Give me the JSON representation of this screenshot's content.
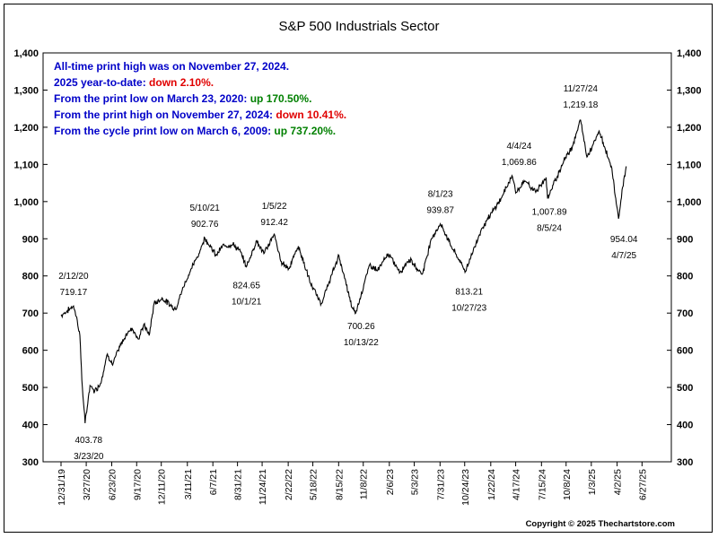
{
  "chart_data": {
    "type": "line",
    "title": "S&P 500 Industrials Sector",
    "xlabel": "",
    "ylabel": "",
    "ylim": [
      300,
      1400
    ],
    "y_ticks": [
      "300",
      "400",
      "500",
      "600",
      "700",
      "800",
      "900",
      "1,000",
      "1,100",
      "1,200",
      "1,300",
      "1,400"
    ],
    "grid": false,
    "line_color": "#000000",
    "x_date_range": [
      "2019-12-31",
      "2025-07-30"
    ],
    "x_ticks": [
      {
        "label": "12/31/19",
        "date": "2019-12-31"
      },
      {
        "label": "3/27/20",
        "date": "2020-03-27"
      },
      {
        "label": "6/23/20",
        "date": "2020-06-23"
      },
      {
        "label": "9/17/20",
        "date": "2020-09-17"
      },
      {
        "label": "12/11/20",
        "date": "2020-12-11"
      },
      {
        "label": "3/11/21",
        "date": "2021-03-11"
      },
      {
        "label": "6/7/21",
        "date": "2021-06-07"
      },
      {
        "label": "8/31/21",
        "date": "2021-08-31"
      },
      {
        "label": "11/24/21",
        "date": "2021-11-24"
      },
      {
        "label": "2/22/22",
        "date": "2022-02-22"
      },
      {
        "label": "5/18/22",
        "date": "2022-05-18"
      },
      {
        "label": "8/15/22",
        "date": "2022-08-15"
      },
      {
        "label": "11/8/22",
        "date": "2022-11-08"
      },
      {
        "label": "2/6/23",
        "date": "2023-02-06"
      },
      {
        "label": "5/3/23",
        "date": "2023-05-03"
      },
      {
        "label": "7/31/23",
        "date": "2023-07-31"
      },
      {
        "label": "10/24/23",
        "date": "2023-10-24"
      },
      {
        "label": "1/22/24",
        "date": "2024-01-22"
      },
      {
        "label": "4/17/24",
        "date": "2024-04-17"
      },
      {
        "label": "7/15/24",
        "date": "2024-07-15"
      },
      {
        "label": "10/8/24",
        "date": "2024-10-08"
      },
      {
        "label": "1/3/25",
        "date": "2025-01-03"
      },
      {
        "label": "4/2/25",
        "date": "2025-04-02"
      },
      {
        "label": "6/27/25",
        "date": "2025-06-27"
      }
    ],
    "series": [
      {
        "values": [
          {
            "x": "2019-12-31",
            "y": 693
          },
          {
            "x": "2020-01-20",
            "y": 705
          },
          {
            "x": "2020-02-12",
            "y": 719.17
          },
          {
            "x": "2020-02-25",
            "y": 680
          },
          {
            "x": "2020-03-05",
            "y": 640
          },
          {
            "x": "2020-03-12",
            "y": 520
          },
          {
            "x": "2020-03-23",
            "y": 403.78
          },
          {
            "x": "2020-04-09",
            "y": 505
          },
          {
            "x": "2020-04-25",
            "y": 490
          },
          {
            "x": "2020-05-15",
            "y": 510
          },
          {
            "x": "2020-06-08",
            "y": 590
          },
          {
            "x": "2020-06-26",
            "y": 560
          },
          {
            "x": "2020-07-15",
            "y": 600
          },
          {
            "x": "2020-08-10",
            "y": 640
          },
          {
            "x": "2020-09-01",
            "y": 660
          },
          {
            "x": "2020-09-24",
            "y": 630
          },
          {
            "x": "2020-10-12",
            "y": 670
          },
          {
            "x": "2020-10-30",
            "y": 640
          },
          {
            "x": "2020-11-16",
            "y": 725
          },
          {
            "x": "2020-12-15",
            "y": 740
          },
          {
            "x": "2021-01-29",
            "y": 710
          },
          {
            "x": "2021-02-25",
            "y": 770
          },
          {
            "x": "2021-03-25",
            "y": 820
          },
          {
            "x": "2021-04-20",
            "y": 860
          },
          {
            "x": "2021-05-10",
            "y": 902.76
          },
          {
            "x": "2021-06-18",
            "y": 855
          },
          {
            "x": "2021-07-10",
            "y": 880
          },
          {
            "x": "2021-08-15",
            "y": 885
          },
          {
            "x": "2021-09-10",
            "y": 865
          },
          {
            "x": "2021-10-01",
            "y": 824.65
          },
          {
            "x": "2021-11-05",
            "y": 895
          },
          {
            "x": "2021-11-30",
            "y": 860
          },
          {
            "x": "2022-01-05",
            "y": 912.42
          },
          {
            "x": "2022-01-27",
            "y": 840
          },
          {
            "x": "2022-02-24",
            "y": 820
          },
          {
            "x": "2022-03-29",
            "y": 880
          },
          {
            "x": "2022-05-10",
            "y": 780
          },
          {
            "x": "2022-06-16",
            "y": 725
          },
          {
            "x": "2022-08-16",
            "y": 855
          },
          {
            "x": "2022-09-30",
            "y": 715
          },
          {
            "x": "2022-10-13",
            "y": 700.26
          },
          {
            "x": "2022-11-30",
            "y": 830
          },
          {
            "x": "2022-12-28",
            "y": 815
          },
          {
            "x": "2023-02-02",
            "y": 860
          },
          {
            "x": "2023-03-15",
            "y": 810
          },
          {
            "x": "2023-04-15",
            "y": 845
          },
          {
            "x": "2023-05-31",
            "y": 805
          },
          {
            "x": "2023-07-01",
            "y": 900
          },
          {
            "x": "2023-08-01",
            "y": 939.87
          },
          {
            "x": "2023-09-15",
            "y": 870
          },
          {
            "x": "2023-10-27",
            "y": 813.21
          },
          {
            "x": "2023-12-20",
            "y": 925
          },
          {
            "x": "2024-02-28",
            "y": 1010
          },
          {
            "x": "2024-04-04",
            "y": 1069.86
          },
          {
            "x": "2024-04-19",
            "y": 1025
          },
          {
            "x": "2024-05-20",
            "y": 1055
          },
          {
            "x": "2024-06-25",
            "y": 1025
          },
          {
            "x": "2024-07-31",
            "y": 1065
          },
          {
            "x": "2024-08-05",
            "y": 1007.89
          },
          {
            "x": "2024-09-30",
            "y": 1110
          },
          {
            "x": "2024-10-30",
            "y": 1150
          },
          {
            "x": "2024-11-27",
            "y": 1219.18
          },
          {
            "x": "2024-12-19",
            "y": 1120
          },
          {
            "x": "2025-01-30",
            "y": 1190
          },
          {
            "x": "2025-03-13",
            "y": 1095
          },
          {
            "x": "2025-04-07",
            "y": 954.04
          },
          {
            "x": "2025-04-25",
            "y": 1060
          },
          {
            "x": "2025-05-05",
            "y": 1093
          }
        ]
      }
    ],
    "annotations": [
      {
        "label": "2/12/20",
        "value": "719.17"
      },
      {
        "label": "3/23/20",
        "value": "403.78"
      },
      {
        "label": "5/10/21",
        "value": "902.76"
      },
      {
        "label": "10/1/21",
        "value": "824.65"
      },
      {
        "label": "1/5/22",
        "value": "912.42"
      },
      {
        "label": "10/13/22",
        "value": "700.26"
      },
      {
        "label": "8/1/23",
        "value": "939.87"
      },
      {
        "label": "10/27/23",
        "value": "813.21"
      },
      {
        "label": "4/4/24",
        "value": "1,069.86"
      },
      {
        "label": "8/5/24",
        "value": "1,007.89"
      },
      {
        "label": "11/27/24",
        "value": "1,219.18"
      },
      {
        "label": "4/7/25",
        "value": "954.04"
      }
    ],
    "info_lines": [
      {
        "text": "All-time print high was on November 27, 2024.",
        "highlight": "",
        "highlight_color": ""
      },
      {
        "text": "2025 year-to-date:",
        "highlight": "down 2.10%.",
        "highlight_color": "#e00000"
      },
      {
        "text": "From the print low on March 23, 2020:",
        "highlight": "up 170.50%.",
        "highlight_color": "#008000"
      },
      {
        "text": "From the print high on November 27, 2024:",
        "highlight": "down 10.41%.",
        "highlight_color": "#e00000"
      },
      {
        "text": "From the cycle print low on March 6, 2009:",
        "highlight": "up 737.20%.",
        "highlight_color": "#008000"
      }
    ],
    "info_color": "#0000c8",
    "copyright": "Copyright © 2025 Thechartstore.com"
  }
}
